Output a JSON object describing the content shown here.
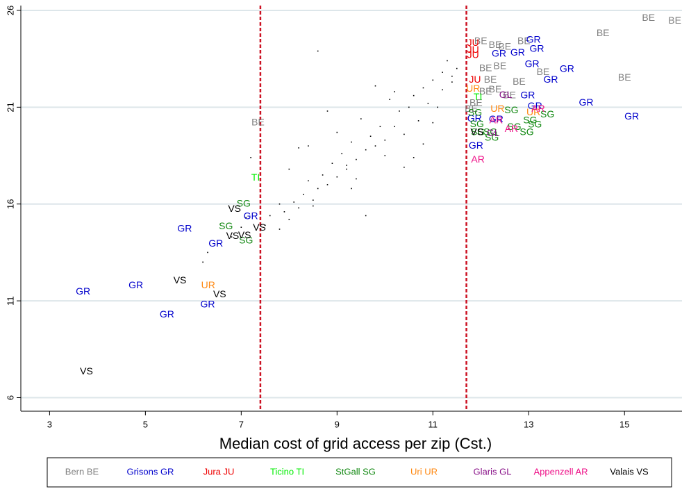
{
  "chart_data": {
    "type": "scatter",
    "xlabel": "Median cost of grid access per zip (Cst.)",
    "xlim": [
      2.4,
      16.2
    ],
    "ylim": [
      5.3,
      26.25
    ],
    "xticks": [
      3,
      5,
      7,
      9,
      11,
      13,
      15
    ],
    "yticks": [
      6,
      11,
      16,
      21,
      26
    ],
    "vlines": [
      7.4,
      11.7
    ],
    "vline_color": "#cc1122",
    "grid": true,
    "series": [
      {
        "name": "Bern BE",
        "label": "BE",
        "color": "#808080",
        "x": [
          7.35,
          12.0,
          12.3,
          12.9,
          12.5,
          12.1,
          12.4,
          12.8,
          13.3,
          12.2,
          11.9,
          12.1,
          12.6,
          14.55,
          15.5,
          16.05,
          15.0,
          11.8,
          12.3
        ],
        "y": [
          20.2,
          24.4,
          24.2,
          24.4,
          24.1,
          23.0,
          23.1,
          22.3,
          22.8,
          22.4,
          21.2,
          21.8,
          21.6,
          24.8,
          25.6,
          25.45,
          22.5,
          20.9,
          21.9
        ]
      },
      {
        "name": "Grisons GR",
        "label": "GR",
        "color": "#0000cc",
        "x": [
          3.7,
          4.8,
          5.45,
          5.82,
          6.3,
          6.47,
          7.2,
          11.87,
          11.9,
          12.38,
          12.77,
          13.1,
          13.17,
          13.07,
          12.98,
          13.8,
          13.46,
          13.13,
          14.2,
          15.15,
          12.32
        ],
        "y": [
          11.46,
          11.78,
          10.27,
          14.7,
          10.8,
          13.94,
          15.35,
          20.4,
          19.0,
          23.74,
          23.8,
          24.46,
          24.0,
          23.2,
          21.6,
          22.95,
          22.4,
          21.04,
          21.22,
          20.5,
          20.36
        ]
      },
      {
        "name": "Jura JU",
        "label": "JU",
        "color": "#ee0000",
        "x": [
          11.84,
          11.84,
          11.84,
          11.88
        ],
        "y": [
          24.3,
          23.67,
          23.95,
          22.4
        ]
      },
      {
        "name": "Ticino TI",
        "label": "TI",
        "color": "#00ee00",
        "x": [
          7.3,
          11.94
        ],
        "y": [
          17.35,
          21.5
        ]
      },
      {
        "name": "StGall SG",
        "label": "SG",
        "color": "#118811",
        "x": [
          7.05,
          6.68,
          7.1,
          11.88,
          12.64,
          13.03,
          13.39,
          13.13,
          12.96,
          12.23,
          11.94,
          11.92,
          12.7,
          12.2
        ],
        "y": [
          16.0,
          14.83,
          14.1,
          20.7,
          20.83,
          20.3,
          20.6,
          20.08,
          19.7,
          19.4,
          19.7,
          20.1,
          19.97,
          19.7
        ]
      },
      {
        "name": "Uri UR",
        "label": "UR",
        "color": "#ff8811",
        "x": [
          6.31,
          12.35,
          13.1,
          11.84
        ],
        "y": [
          11.78,
          20.9,
          20.72,
          21.94
        ]
      },
      {
        "name": "Glaris GL",
        "label": "GL",
        "color": "#881188",
        "x": [
          12.52,
          12.26
        ],
        "y": [
          21.62,
          19.64
        ]
      },
      {
        "name": "Appenzell AR",
        "label": "AR",
        "color": "#ee1188",
        "x": [
          11.94,
          12.64,
          13.2,
          12.32
        ],
        "y": [
          18.28,
          19.86,
          20.9,
          20.3
        ]
      },
      {
        "name": "Valais VS",
        "label": "VS",
        "color": "#000000",
        "x": [
          3.77,
          5.72,
          6.55,
          6.86,
          7.38,
          6.82,
          7.07,
          11.92
        ],
        "y": [
          7.33,
          12.03,
          11.31,
          15.73,
          14.76,
          14.33,
          14.37,
          19.7
        ]
      }
    ],
    "dots": {
      "color": "#000000",
      "x": [
        6.2,
        6.3,
        6.5,
        6.8,
        7.0,
        7.2,
        7.5,
        7.6,
        7.8,
        7.9,
        8.0,
        8.1,
        8.2,
        8.3,
        8.4,
        8.5,
        8.6,
        8.7,
        8.8,
        8.9,
        9.0,
        9.1,
        9.2,
        9.3,
        9.4,
        9.5,
        9.6,
        9.7,
        9.8,
        9.9,
        10.0,
        10.1,
        10.2,
        10.3,
        10.4,
        10.5,
        10.6,
        10.7,
        10.8,
        10.9,
        11.0,
        11.1,
        11.2,
        11.3,
        11.4,
        11.5,
        8.6,
        8.4,
        9.0,
        9.3,
        9.6,
        10.0,
        10.4,
        10.8,
        11.2,
        7.8,
        8.2,
        8.8,
        9.8,
        10.6,
        11.0,
        7.1,
        9.4,
        10.2,
        11.4,
        8.0,
        8.5,
        9.2
      ],
      "y": [
        13.0,
        13.5,
        13.9,
        14.3,
        14.8,
        18.4,
        14.9,
        15.4,
        14.7,
        15.6,
        15.2,
        16.1,
        15.8,
        16.5,
        17.2,
        16.2,
        16.8,
        17.5,
        17.0,
        18.1,
        17.4,
        18.6,
        17.8,
        19.2,
        18.3,
        20.4,
        18.8,
        19.5,
        19.0,
        20.0,
        19.3,
        21.4,
        20.0,
        20.8,
        19.6,
        21.0,
        21.6,
        20.3,
        22.0,
        21.2,
        22.4,
        21.0,
        22.8,
        23.4,
        22.3,
        23.0,
        23.9,
        19.0,
        19.7,
        16.8,
        15.4,
        18.5,
        17.9,
        19.1,
        21.9,
        16.0,
        18.9,
        20.8,
        22.1,
        18.4,
        20.2,
        15.3,
        17.3,
        21.8,
        22.6,
        17.8,
        15.9,
        18.0
      ]
    }
  }
}
